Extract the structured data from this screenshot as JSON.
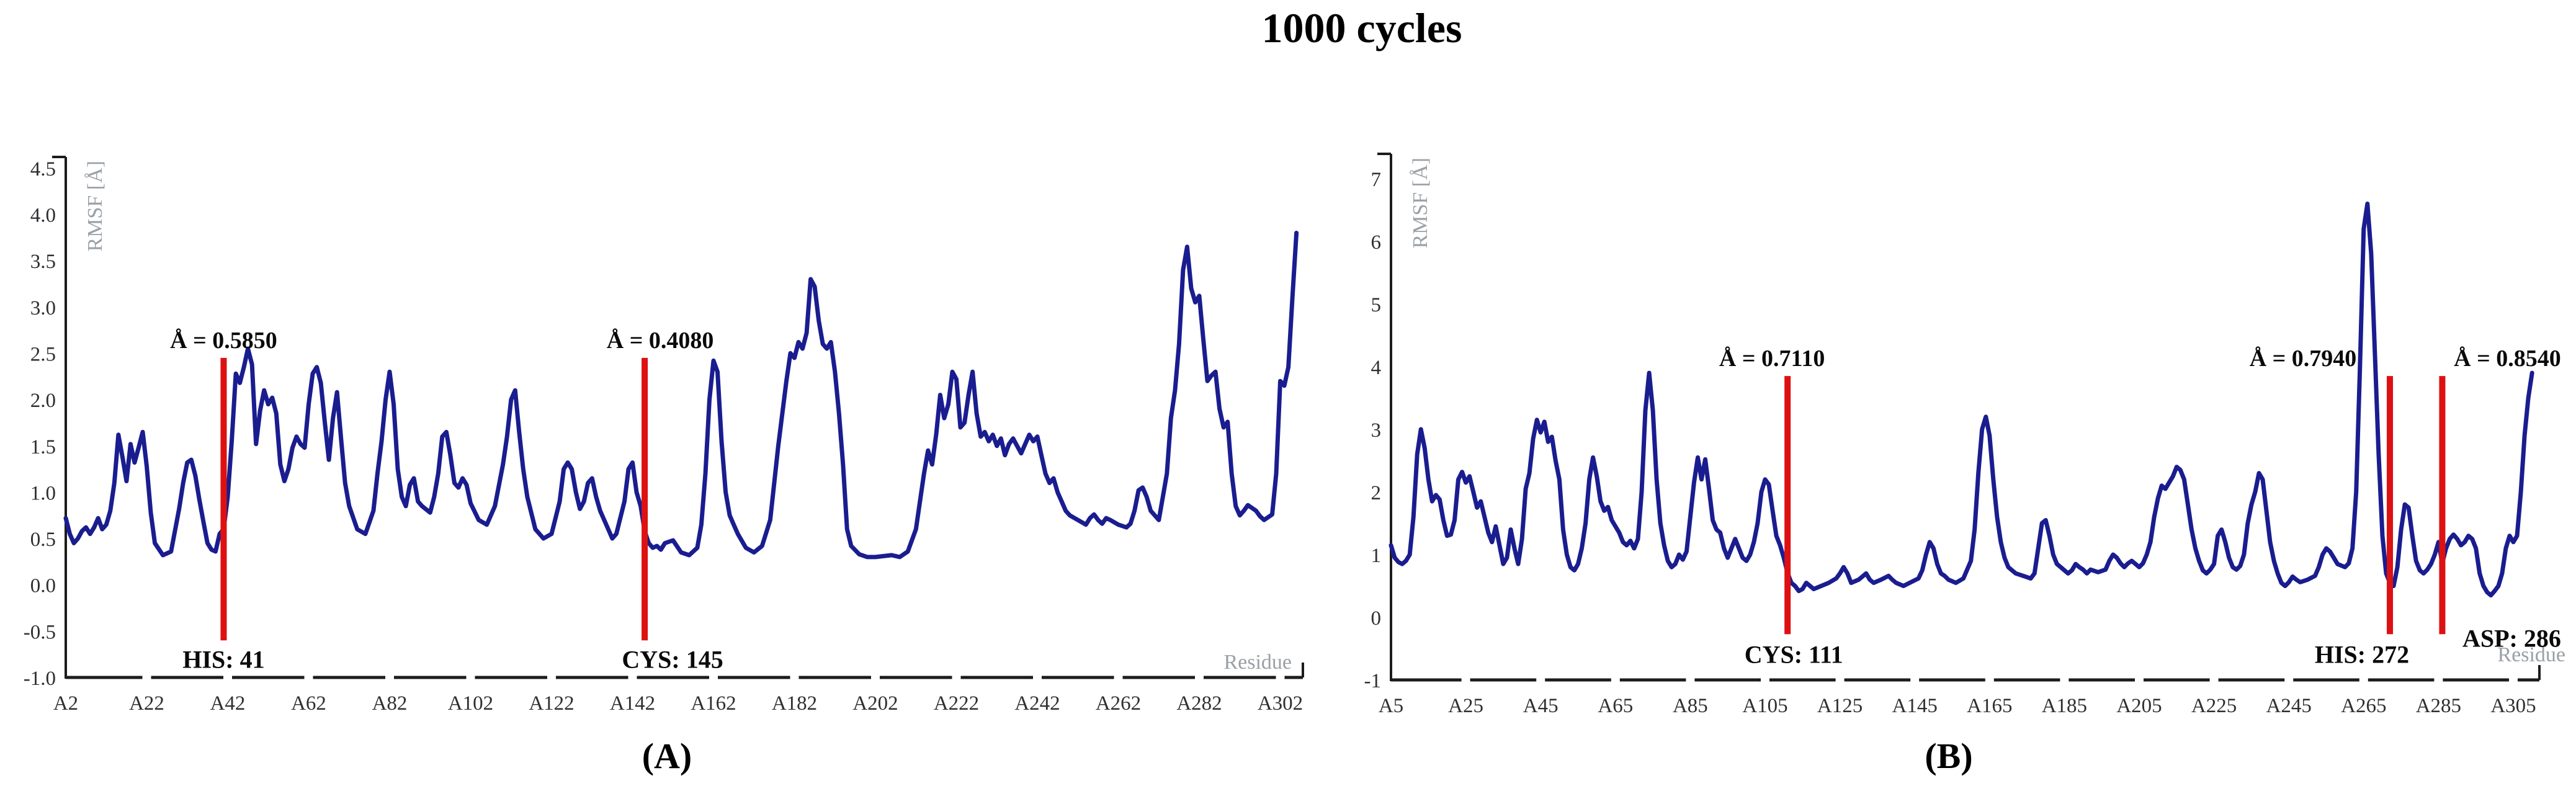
{
  "title": "1000 cycles",
  "colors": {
    "line": "#1a1d8f",
    "marker": "#dd1111",
    "axis": "#1c1c1c",
    "tick": "#2f2f33",
    "muted": "#9aa0a6",
    "annotation": "#0a0a0a",
    "background": "#ffffff"
  },
  "panels": [
    {
      "caption": "(A)"
    },
    {
      "caption": "(B)"
    }
  ],
  "chart_data": [
    {
      "type": "line",
      "series": "RMSF",
      "title": "",
      "xlabel": "Residue",
      "ylabel": "RMSF [Å]",
      "grid": false,
      "legend": "none",
      "xlim": [
        2,
        308
      ],
      "ylim": [
        -1.0,
        4.5
      ],
      "xtick_values": [
        2,
        22,
        42,
        62,
        82,
        102,
        122,
        142,
        162,
        182,
        202,
        222,
        242,
        262,
        282,
        302
      ],
      "xtick_labels": [
        "A2",
        "A22",
        "A42",
        "A62",
        "A82",
        "A102",
        "A122",
        "A142",
        "A162",
        "A182",
        "A202",
        "A222",
        "A242",
        "A262",
        "A282",
        "A302"
      ],
      "ytick_values": [
        4.5,
        4.0,
        3.5,
        3.0,
        2.5,
        2.0,
        1.5,
        1.0,
        0.5,
        0.0,
        -0.5,
        -1.0
      ],
      "ytick_labels": [
        "4.5",
        "4.0",
        "3.5",
        "3.0",
        "2.5",
        "2.0",
        "1.5",
        "1.0",
        "0.5",
        "0.0",
        "-0.5",
        "-1.0"
      ],
      "marker_top": 2.45,
      "marker_bottom": -0.6,
      "markers": [
        {
          "residue": 41,
          "rmsf": 0.585,
          "value_label": "Å = 0.5850",
          "name": "HIS: 41"
        },
        {
          "residue": 145,
          "rmsf": 0.408,
          "value_label": "Å = 0.4080",
          "name": "CYS: 145"
        }
      ],
      "x": [
        2,
        3,
        4,
        5,
        6,
        7,
        8,
        9,
        10,
        11,
        12,
        13,
        14,
        15,
        16,
        17,
        18,
        19,
        20,
        21,
        22,
        23,
        24,
        26,
        28,
        30,
        31,
        32,
        33,
        34,
        35,
        36,
        37,
        38,
        39,
        40,
        41,
        42,
        43,
        44,
        45,
        46,
        47,
        48,
        49,
        50,
        51,
        52,
        53,
        54,
        55,
        56,
        57,
        58,
        59,
        60,
        61,
        62,
        63,
        64,
        65,
        66,
        67,
        68,
        69,
        70,
        71,
        72,
        74,
        76,
        78,
        79,
        80,
        81,
        82,
        83,
        84,
        85,
        86,
        87,
        88,
        89,
        90,
        92,
        93,
        94,
        95,
        96,
        97,
        98,
        99,
        100,
        101,
        102,
        104,
        106,
        108,
        110,
        111,
        112,
        113,
        114,
        115,
        116,
        118,
        120,
        122,
        124,
        125,
        126,
        127,
        128,
        129,
        130,
        131,
        132,
        133,
        134,
        136,
        137,
        138,
        140,
        141,
        142,
        143,
        144,
        145,
        146,
        147,
        148,
        149,
        150,
        152,
        154,
        156,
        158,
        159,
        160,
        161,
        162,
        163,
        164,
        165,
        166,
        167,
        168,
        170,
        172,
        174,
        176,
        178,
        180,
        181,
        182,
        183,
        184,
        185,
        186,
        187,
        188,
        189,
        190,
        191,
        192,
        193,
        194,
        195,
        196,
        198,
        200,
        202,
        204,
        206,
        208,
        210,
        212,
        214,
        215,
        216,
        217,
        218,
        219,
        220,
        221,
        222,
        223,
        224,
        225,
        226,
        227,
        228,
        229,
        230,
        231,
        232,
        233,
        234,
        235,
        236,
        237,
        238,
        239,
        240,
        241,
        242,
        243,
        244,
        245,
        246,
        247,
        248,
        249,
        250,
        252,
        254,
        255,
        256,
        257,
        258,
        259,
        260,
        262,
        264,
        265,
        266,
        267,
        268,
        269,
        270,
        272,
        274,
        275,
        276,
        277,
        278,
        279,
        280,
        281,
        282,
        283,
        284,
        285,
        286,
        287,
        288,
        289,
        290,
        291,
        292,
        293,
        294,
        296,
        297,
        298,
        300,
        301,
        302,
        303,
        304,
        305,
        306
      ],
      "y": [
        0.72,
        0.55,
        0.45,
        0.5,
        0.58,
        0.62,
        0.55,
        0.62,
        0.72,
        0.6,
        0.65,
        0.8,
        1.1,
        1.62,
        1.38,
        1.12,
        1.52,
        1.32,
        1.48,
        1.65,
        1.28,
        0.78,
        0.45,
        0.32,
        0.36,
        0.82,
        1.1,
        1.32,
        1.35,
        1.18,
        0.92,
        0.68,
        0.45,
        0.38,
        0.36,
        0.55,
        0.6,
        0.95,
        1.55,
        2.28,
        2.18,
        2.35,
        2.55,
        2.38,
        1.52,
        1.88,
        2.1,
        1.95,
        2.02,
        1.85,
        1.3,
        1.12,
        1.25,
        1.48,
        1.6,
        1.52,
        1.48,
        1.95,
        2.28,
        2.35,
        2.18,
        1.75,
        1.35,
        1.8,
        2.08,
        1.58,
        1.1,
        0.85,
        0.6,
        0.55,
        0.8,
        1.2,
        1.55,
        2.0,
        2.3,
        1.95,
        1.25,
        0.95,
        0.85,
        1.08,
        1.15,
        0.9,
        0.85,
        0.78,
        0.95,
        1.2,
        1.6,
        1.65,
        1.4,
        1.1,
        1.05,
        1.15,
        1.08,
        0.88,
        0.7,
        0.65,
        0.85,
        1.3,
        1.6,
        2.0,
        2.1,
        1.65,
        1.25,
        0.95,
        0.6,
        0.5,
        0.55,
        0.9,
        1.25,
        1.32,
        1.25,
        1.0,
        0.82,
        0.9,
        1.1,
        1.15,
        0.95,
        0.8,
        0.6,
        0.5,
        0.55,
        0.9,
        1.25,
        1.32,
        1.0,
        0.85,
        0.58,
        0.45,
        0.4,
        0.42,
        0.38,
        0.45,
        0.48,
        0.35,
        0.32,
        0.4,
        0.65,
        1.2,
        2.0,
        2.42,
        2.3,
        1.55,
        1.0,
        0.75,
        0.65,
        0.55,
        0.4,
        0.35,
        0.42,
        0.7,
        1.5,
        2.2,
        2.5,
        2.45,
        2.62,
        2.55,
        2.72,
        3.3,
        3.22,
        2.85,
        2.6,
        2.55,
        2.62,
        2.3,
        1.85,
        1.3,
        0.6,
        0.42,
        0.33,
        0.3,
        0.3,
        0.31,
        0.32,
        0.3,
        0.36,
        0.6,
        1.2,
        1.45,
        1.3,
        1.62,
        2.05,
        1.8,
        1.95,
        2.3,
        2.22,
        1.7,
        1.75,
        2.05,
        2.3,
        1.85,
        1.6,
        1.65,
        1.55,
        1.62,
        1.5,
        1.58,
        1.4,
        1.52,
        1.58,
        1.5,
        1.42,
        1.52,
        1.62,
        1.55,
        1.6,
        1.4,
        1.2,
        1.1,
        1.15,
        1.0,
        0.9,
        0.8,
        0.75,
        0.7,
        0.65,
        0.72,
        0.76,
        0.7,
        0.66,
        0.72,
        0.7,
        0.65,
        0.62,
        0.66,
        0.8,
        1.02,
        1.05,
        0.95,
        0.8,
        0.7,
        1.2,
        1.8,
        2.1,
        2.6,
        3.4,
        3.65,
        3.2,
        3.05,
        3.12,
        2.65,
        2.2,
        2.26,
        2.3,
        1.9,
        1.7,
        1.76,
        1.2,
        0.85,
        0.75,
        0.8,
        0.86,
        0.8,
        0.74,
        0.7,
        0.76,
        1.2,
        2.2,
        2.15,
        2.35,
        3.1,
        3.8
      ]
    },
    {
      "type": "line",
      "series": "RMSF",
      "title": "",
      "xlabel": "Residue",
      "ylabel": "RMSF [Å]",
      "grid": false,
      "legend": "none",
      "xlim": [
        5,
        312
      ],
      "ylim": [
        -1,
        7
      ],
      "xtick_values": [
        5,
        25,
        45,
        65,
        85,
        105,
        125,
        145,
        165,
        185,
        205,
        225,
        245,
        265,
        285,
        305
      ],
      "xtick_labels": [
        "A5",
        "A25",
        "A45",
        "A65",
        "A85",
        "A105",
        "A125",
        "A145",
        "A165",
        "A185",
        "A205",
        "A225",
        "A245",
        "A265",
        "A285",
        "A305"
      ],
      "ytick_values": [
        7,
        6,
        5,
        4,
        3,
        2,
        1,
        0,
        -1
      ],
      "ytick_labels": [
        "7",
        "6",
        "5",
        "4",
        "3",
        "2",
        "1",
        "0",
        "-1"
      ],
      "marker_top": 3.85,
      "marker_bottom": -0.27,
      "markers": [
        {
          "residue": 111,
          "rmsf": 0.711,
          "value_label": "Å = 0.7110",
          "name": "CYS: 111"
        },
        {
          "residue": 272,
          "rmsf": 0.794,
          "value_label": "Å = 0.7940",
          "name": "HIS: 272"
        },
        {
          "residue": 286,
          "rmsf": 0.854,
          "value_label": "Å = 0.8540",
          "name": "ASP: 286"
        }
      ],
      "x": [
        5,
        6,
        7,
        8,
        9,
        10,
        11,
        12,
        13,
        14,
        15,
        16,
        17,
        18,
        19,
        20,
        21,
        22,
        23,
        24,
        25,
        26,
        27,
        28,
        29,
        30,
        31,
        32,
        33,
        34,
        35,
        36,
        37,
        38,
        39,
        40,
        41,
        42,
        43,
        44,
        45,
        46,
        47,
        48,
        49,
        50,
        51,
        52,
        53,
        54,
        55,
        56,
        57,
        58,
        59,
        60,
        61,
        62,
        63,
        64,
        65,
        66,
        67,
        68,
        69,
        70,
        71,
        72,
        73,
        74,
        75,
        76,
        77,
        78,
        79,
        80,
        81,
        82,
        83,
        84,
        85,
        86,
        87,
        88,
        89,
        90,
        91,
        92,
        93,
        94,
        95,
        96,
        97,
        98,
        99,
        100,
        101,
        102,
        103,
        104,
        105,
        106,
        107,
        108,
        109,
        110,
        111,
        112,
        113,
        114,
        115,
        116,
        117,
        118,
        120,
        122,
        124,
        125,
        126,
        127,
        128,
        130,
        132,
        133,
        134,
        136,
        138,
        139,
        140,
        142,
        144,
        146,
        147,
        148,
        149,
        150,
        151,
        152,
        153,
        154,
        156,
        158,
        160,
        161,
        162,
        163,
        164,
        165,
        166,
        167,
        168,
        169,
        170,
        171,
        172,
        174,
        176,
        177,
        178,
        179,
        180,
        181,
        182,
        183,
        184,
        185,
        186,
        187,
        188,
        189,
        190,
        191,
        192,
        194,
        196,
        197,
        198,
        199,
        200,
        201,
        202,
        203,
        204,
        205,
        206,
        207,
        208,
        209,
        210,
        211,
        212,
        213,
        214,
        215,
        216,
        217,
        218,
        219,
        220,
        221,
        222,
        223,
        224,
        225,
        226,
        227,
        228,
        229,
        230,
        231,
        232,
        233,
        234,
        235,
        236,
        237,
        238,
        239,
        240,
        241,
        242,
        243,
        244,
        245,
        246,
        247,
        248,
        250,
        252,
        253,
        254,
        255,
        256,
        257,
        258,
        260,
        261,
        262,
        263,
        264,
        265,
        266,
        267,
        268,
        269,
        270,
        271,
        272,
        273,
        274,
        275,
        276,
        277,
        278,
        279,
        280,
        281,
        282,
        283,
        284,
        285,
        286,
        287,
        288,
        289,
        290,
        291,
        292,
        293,
        294,
        295,
        296,
        297,
        298,
        299,
        300,
        301,
        302,
        303,
        304,
        305,
        306,
        307,
        308,
        309,
        310
      ],
      "y": [
        1.15,
        0.95,
        0.88,
        0.85,
        0.9,
        1.0,
        1.6,
        2.6,
        3.0,
        2.7,
        2.2,
        1.85,
        1.95,
        1.88,
        1.55,
        1.3,
        1.32,
        1.55,
        2.2,
        2.32,
        2.15,
        2.25,
        2.0,
        1.75,
        1.85,
        1.6,
        1.35,
        1.2,
        1.45,
        1.15,
        0.85,
        0.95,
        1.4,
        1.1,
        0.85,
        1.25,
        2.05,
        2.3,
        2.85,
        3.15,
        2.95,
        3.12,
        2.8,
        2.88,
        2.5,
        2.2,
        1.4,
        1.0,
        0.8,
        0.75,
        0.85,
        1.1,
        1.5,
        2.2,
        2.55,
        2.25,
        1.85,
        1.7,
        1.76,
        1.55,
        1.45,
        1.35,
        1.2,
        1.15,
        1.22,
        1.1,
        1.25,
        2.0,
        3.3,
        3.9,
        3.3,
        2.2,
        1.5,
        1.15,
        0.9,
        0.8,
        0.85,
        1.0,
        0.92,
        1.05,
        1.6,
        2.15,
        2.55,
        2.2,
        2.52,
        2.05,
        1.55,
        1.4,
        1.35,
        1.1,
        0.95,
        1.1,
        1.25,
        1.1,
        0.95,
        0.9,
        1.0,
        1.2,
        1.5,
        2.0,
        2.2,
        2.12,
        1.7,
        1.3,
        1.15,
        0.95,
        0.71,
        0.55,
        0.5,
        0.42,
        0.45,
        0.55,
        0.5,
        0.45,
        0.5,
        0.55,
        0.62,
        0.7,
        0.8,
        0.7,
        0.55,
        0.6,
        0.7,
        0.6,
        0.55,
        0.6,
        0.66,
        0.6,
        0.55,
        0.5,
        0.56,
        0.62,
        0.75,
        1.0,
        1.2,
        1.1,
        0.85,
        0.7,
        0.66,
        0.6,
        0.55,
        0.62,
        0.9,
        1.4,
        2.3,
        3.0,
        3.2,
        2.9,
        2.2,
        1.6,
        1.2,
        0.95,
        0.8,
        0.75,
        0.7,
        0.66,
        0.62,
        0.7,
        1.1,
        1.5,
        1.55,
        1.3,
        1.0,
        0.85,
        0.8,
        0.75,
        0.7,
        0.75,
        0.85,
        0.8,
        0.76,
        0.7,
        0.76,
        0.72,
        0.76,
        0.9,
        1.0,
        0.95,
        0.86,
        0.8,
        0.86,
        0.9,
        0.85,
        0.8,
        0.86,
        1.0,
        1.2,
        1.6,
        1.9,
        2.1,
        2.05,
        2.15,
        2.25,
        2.4,
        2.35,
        2.2,
        1.8,
        1.4,
        1.1,
        0.9,
        0.75,
        0.7,
        0.76,
        0.85,
        1.3,
        1.4,
        1.2,
        0.95,
        0.8,
        0.76,
        0.82,
        1.0,
        1.5,
        1.8,
        2.0,
        2.3,
        2.2,
        1.7,
        1.2,
        0.9,
        0.7,
        0.55,
        0.5,
        0.56,
        0.65,
        0.6,
        0.56,
        0.6,
        0.66,
        0.8,
        1.0,
        1.1,
        1.05,
        0.95,
        0.85,
        0.8,
        0.86,
        1.1,
        2.0,
        4.0,
        6.2,
        6.6,
        5.8,
        4.2,
        2.6,
        1.3,
        0.7,
        0.55,
        0.5,
        0.8,
        1.4,
        1.8,
        1.75,
        1.3,
        0.9,
        0.75,
        0.7,
        0.76,
        0.85,
        1.0,
        1.2,
        0.86,
        1.1,
        1.25,
        1.32,
        1.25,
        1.15,
        1.2,
        1.3,
        1.25,
        1.1,
        0.7,
        0.5,
        0.4,
        0.35,
        0.42,
        0.5,
        0.7,
        1.1,
        1.3,
        1.2,
        1.3,
        2.0,
        2.9,
        3.5,
        3.9
      ]
    }
  ]
}
